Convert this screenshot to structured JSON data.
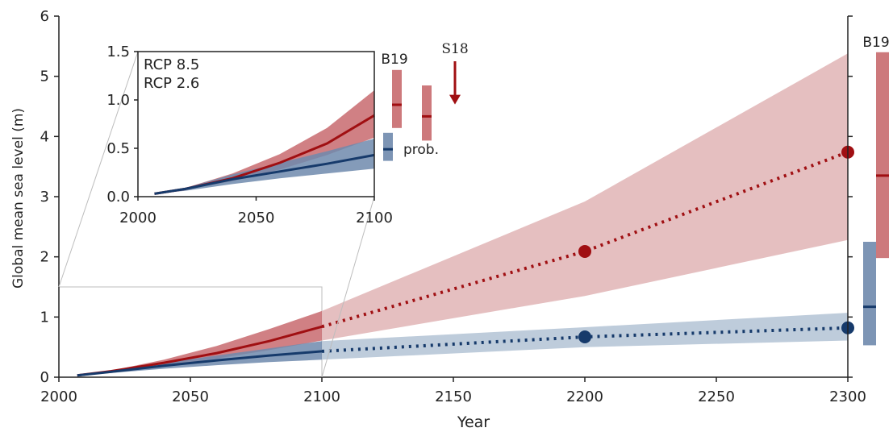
{
  "colors": {
    "rcp85": "#a00f12",
    "rcp85_band": "#e2b8b9",
    "rcp85_band_dark": "#c86a6e",
    "rcp26": "#163a6b",
    "rcp26_band": "#b7c6d7",
    "rcp26_band_dark": "#6f8aad",
    "axis": "#222222",
    "zoom_box": "#bdbdbd"
  },
  "chart_data": [
    {
      "type": "area",
      "role": "main",
      "xlabel": "Year",
      "ylabel": "Global mean sea level (m)",
      "xlim": [
        2000,
        2310
      ],
      "ylim": [
        0,
        6
      ],
      "xticks": [
        "2000",
        "2050",
        "2100",
        "2150",
        "2200",
        "2250",
        "2300"
      ],
      "yticks": [
        "0",
        "1",
        "2",
        "3",
        "4",
        "5",
        "6"
      ],
      "series": [
        {
          "name": "RCP 8.5",
          "key": "rcp85",
          "x": [
            2007,
            2020,
            2040,
            2060,
            2080,
            2100
          ],
          "y": [
            0.03,
            0.1,
            0.24,
            0.4,
            0.6,
            0.84
          ],
          "band_low": [
            0.03,
            0.08,
            0.19,
            0.31,
            0.45,
            0.61
          ],
          "band_high": [
            0.03,
            0.11,
            0.29,
            0.52,
            0.8,
            1.1
          ],
          "dotted_x": [
            2100,
            2200,
            2300
          ],
          "dotted_y": [
            0.84,
            2.09,
            3.74
          ],
          "markers_x": [
            2200,
            2300
          ],
          "markers_y": [
            2.09,
            3.74
          ],
          "ext_band_x": [
            2100,
            2200,
            2300
          ],
          "ext_band_low": [
            0.61,
            1.35,
            2.28
          ],
          "ext_band_high": [
            1.1,
            2.92,
            5.38
          ]
        },
        {
          "name": "RCP 2.6",
          "key": "rcp26",
          "x": [
            2007,
            2020,
            2040,
            2060,
            2080,
            2100
          ],
          "y": [
            0.03,
            0.09,
            0.19,
            0.28,
            0.36,
            0.43
          ],
          "band_low": [
            0.03,
            0.07,
            0.14,
            0.2,
            0.25,
            0.29
          ],
          "band_high": [
            0.03,
            0.1,
            0.24,
            0.36,
            0.48,
            0.6
          ],
          "dotted_x": [
            2100,
            2200,
            2300
          ],
          "dotted_y": [
            0.43,
            0.67,
            0.82
          ],
          "markers_x": [
            2200,
            2300
          ],
          "markers_y": [
            0.67,
            0.82
          ],
          "ext_band_x": [
            2100,
            2200,
            2300
          ],
          "ext_band_low": [
            0.29,
            0.5,
            0.61
          ],
          "ext_band_high": [
            0.6,
            0.83,
            1.07
          ]
        }
      ],
      "side_bars": [
        {
          "label": "B19",
          "series": "rcp85",
          "low": 1.98,
          "high": 5.4,
          "median": 3.35
        },
        {
          "label": "",
          "series": "rcp26",
          "low": 0.53,
          "high": 2.25,
          "median": 1.17
        }
      ],
      "zoom_box": {
        "x": [
          2000,
          2100
        ],
        "y": [
          0,
          1.5
        ]
      }
    },
    {
      "type": "area",
      "role": "inset",
      "xlim": [
        2000,
        2100
      ],
      "ylim": [
        0,
        1.5
      ],
      "xticks": [
        "2000",
        "2050",
        "2100"
      ],
      "yticks": [
        "0.0",
        "0.5",
        "1.0",
        "1.5"
      ],
      "legend": [
        "RCP 8.5",
        "RCP 2.6"
      ],
      "series": [
        {
          "name": "RCP 8.5",
          "key": "rcp85",
          "x": [
            2007,
            2020,
            2040,
            2060,
            2080,
            2100
          ],
          "y": [
            0.03,
            0.08,
            0.19,
            0.35,
            0.55,
            0.84
          ],
          "band_low": [
            0.03,
            0.07,
            0.16,
            0.28,
            0.43,
            0.61
          ],
          "band_high": [
            0.03,
            0.09,
            0.24,
            0.44,
            0.71,
            1.1
          ]
        },
        {
          "name": "RCP 2.6",
          "key": "rcp26",
          "x": [
            2007,
            2020,
            2040,
            2060,
            2080,
            2100
          ],
          "y": [
            0.03,
            0.08,
            0.18,
            0.26,
            0.34,
            0.43
          ],
          "band_low": [
            0.03,
            0.06,
            0.13,
            0.19,
            0.24,
            0.29
          ],
          "band_high": [
            0.03,
            0.09,
            0.23,
            0.35,
            0.47,
            0.6
          ]
        }
      ],
      "side_bars": [
        {
          "label": "B19",
          "series": "rcp85",
          "low": 0.71,
          "high": 1.31,
          "median": 0.95
        },
        {
          "label": "",
          "series": "rcp85",
          "low": 0.58,
          "high": 1.15,
          "median": 0.83
        },
        {
          "label": "prob.",
          "series": "rcp26",
          "low": 0.37,
          "high": 0.66,
          "median": 0.49
        }
      ],
      "arrow": {
        "label": "S18",
        "from": 1.4,
        "to": 0.97
      }
    }
  ]
}
